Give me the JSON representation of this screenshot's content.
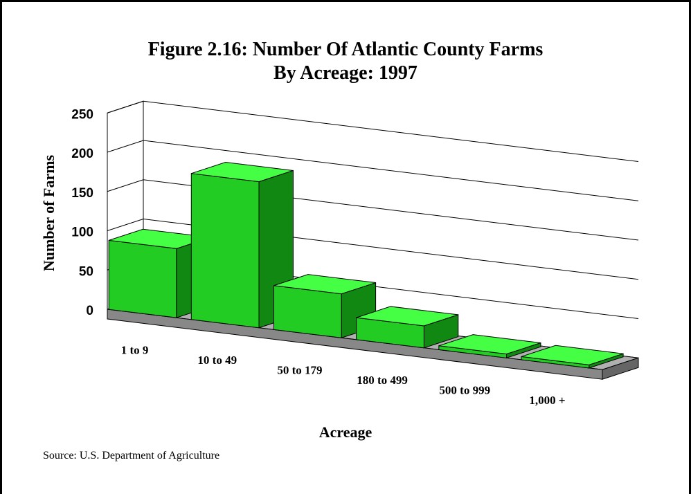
{
  "chart_data": {
    "type": "bar",
    "title_line1": "Figure 2.16: Number Of Atlantic County Farms",
    "title_line2": "By Acreage: 1997",
    "xlabel": "Acreage",
    "ylabel": "Number of Farms",
    "ylim": [
      0,
      250
    ],
    "yticks": [
      "0",
      "50",
      "100",
      "150",
      "200",
      "250"
    ],
    "categories": [
      "1 to 9",
      "10 to 49",
      "50 to 179",
      "180 to 499",
      "500 to 999",
      "1,000 +"
    ],
    "values": [
      88,
      186,
      56,
      28,
      5,
      4
    ],
    "grid": true,
    "three_d": true
  },
  "source": "Source: U.S. Department of Agriculture",
  "colors": {
    "bar_front": "#22cc22",
    "bar_top": "#44ff44",
    "bar_side": "#118811",
    "floor_top": "#b0b0b0",
    "floor_front": "#888888"
  }
}
